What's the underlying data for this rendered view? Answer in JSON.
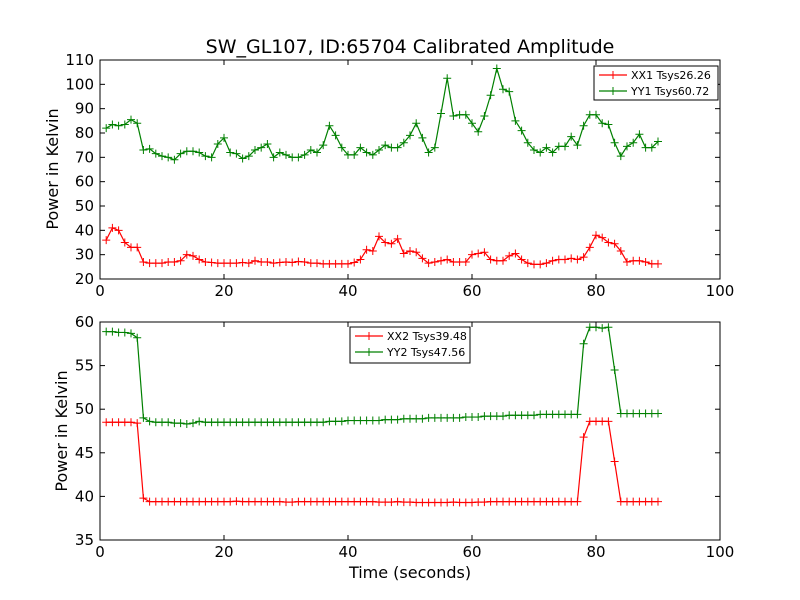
{
  "figure": {
    "title": "SW_GL107, ID:65704 Calibrated Amplitude",
    "xlabel": "Time (seconds)"
  },
  "colors": {
    "red": "#ff0000",
    "green": "#008000",
    "axes": "#000000"
  },
  "chart_data": [
    {
      "type": "line",
      "title": "SW_GL107, ID:65704 Calibrated Amplitude",
      "xlabel": "",
      "ylabel": "Power in Kelvin",
      "xlim": [
        0,
        100
      ],
      "ylim": [
        20,
        110
      ],
      "xticks": [
        0,
        20,
        40,
        60,
        80,
        100
      ],
      "yticks": [
        20,
        30,
        40,
        50,
        60,
        70,
        80,
        90,
        100,
        110
      ],
      "grid": false,
      "legend": "top-right",
      "marker": "+",
      "x": [
        1,
        2,
        3,
        4,
        5,
        6,
        7,
        8,
        9,
        10,
        11,
        12,
        13,
        14,
        15,
        16,
        17,
        18,
        19,
        20,
        21,
        22,
        23,
        24,
        25,
        26,
        27,
        28,
        29,
        30,
        31,
        32,
        33,
        34,
        35,
        36,
        37,
        38,
        39,
        40,
        41,
        42,
        43,
        44,
        45,
        46,
        47,
        48,
        49,
        50,
        51,
        52,
        53,
        54,
        55,
        56,
        57,
        58,
        59,
        60,
        61,
        62,
        63,
        64,
        65,
        66,
        67,
        68,
        69,
        70,
        71,
        72,
        73,
        74,
        75,
        76,
        77,
        78,
        79,
        80,
        81,
        82,
        83,
        84,
        85,
        86,
        87,
        88,
        89,
        90
      ],
      "series": [
        {
          "name": "XX1 Tsys26.26",
          "color": "#ff0000",
          "values": [
            36,
            41,
            40,
            35,
            33,
            33,
            27,
            26.5,
            26.5,
            26.5,
            27,
            27,
            27.5,
            30,
            29.5,
            28,
            27,
            26.8,
            26.5,
            26.5,
            26.5,
            26.5,
            26.8,
            26.5,
            27.5,
            27,
            27,
            26.5,
            26.8,
            27,
            26.8,
            27.2,
            27,
            26.5,
            26.5,
            26.2,
            26.2,
            26.2,
            26.2,
            26.2,
            26.8,
            28,
            32,
            31.5,
            37.5,
            35,
            34.5,
            36.5,
            30.5,
            31.5,
            31,
            28.5,
            26.5,
            27,
            27.5,
            28,
            27,
            27,
            27,
            30,
            30.5,
            31,
            28,
            27.5,
            27.5,
            29.5,
            30.5,
            28,
            26.5,
            26,
            26,
            26.5,
            27.5,
            28,
            28,
            28.5,
            28,
            29,
            33,
            38,
            37,
            35,
            34.5,
            31.5,
            27,
            27.5,
            27.5,
            27,
            26.2,
            26.2
          ]
        },
        {
          "name": "YY1 Tsys60.72",
          "color": "#008000",
          "values": [
            82,
            83.5,
            83,
            83.5,
            85.5,
            84,
            73,
            73.5,
            71.5,
            70.5,
            70,
            69,
            71.5,
            72.5,
            72.5,
            72,
            70.5,
            70,
            75.5,
            78,
            72,
            71.5,
            69.5,
            70.5,
            73,
            74,
            75.5,
            70,
            72,
            71,
            70,
            70,
            71,
            73,
            72,
            75,
            83,
            79,
            74,
            71,
            71,
            74,
            72,
            71,
            73,
            75,
            74,
            74,
            76,
            79,
            84,
            78,
            72,
            74,
            88,
            102.5,
            87,
            87.5,
            87.5,
            84,
            80.5,
            87,
            95.5,
            106.5,
            98,
            97,
            85,
            81,
            76,
            73,
            72,
            74,
            72,
            74.5,
            74.5,
            78.5,
            75,
            83,
            87.5,
            87.5,
            84,
            83.5,
            76,
            70.5,
            74.5,
            76,
            79.5,
            74,
            74,
            76.5
          ]
        }
      ]
    },
    {
      "type": "line",
      "title": "",
      "xlabel": "Time (seconds)",
      "ylabel": "Power in Kelvin",
      "xlim": [
        0,
        100
      ],
      "ylim": [
        35,
        60
      ],
      "xticks": [
        0,
        20,
        40,
        60,
        80,
        100
      ],
      "yticks": [
        35,
        40,
        45,
        50,
        55,
        60
      ],
      "grid": false,
      "legend": "top-center",
      "marker": "+",
      "x": [
        1,
        2,
        3,
        4,
        5,
        6,
        7,
        8,
        9,
        10,
        11,
        12,
        13,
        14,
        15,
        16,
        17,
        18,
        19,
        20,
        21,
        22,
        23,
        24,
        25,
        26,
        27,
        28,
        29,
        30,
        31,
        32,
        33,
        34,
        35,
        36,
        37,
        38,
        39,
        40,
        41,
        42,
        43,
        44,
        45,
        46,
        47,
        48,
        49,
        50,
        51,
        52,
        53,
        54,
        55,
        56,
        57,
        58,
        59,
        60,
        61,
        62,
        63,
        64,
        65,
        66,
        67,
        68,
        69,
        70,
        71,
        72,
        73,
        74,
        75,
        76,
        77,
        78,
        79,
        80,
        81,
        82,
        83,
        84,
        85,
        86,
        87,
        88,
        89,
        90
      ],
      "series": [
        {
          "name": "XX2 Tsys39.48",
          "color": "#ff0000",
          "values": [
            48.5,
            48.5,
            48.5,
            48.5,
            48.5,
            48.4,
            39.8,
            39.4,
            39.4,
            39.4,
            39.4,
            39.4,
            39.4,
            39.4,
            39.4,
            39.4,
            39.4,
            39.4,
            39.4,
            39.4,
            39.4,
            39.45,
            39.4,
            39.4,
            39.4,
            39.4,
            39.4,
            39.4,
            39.4,
            39.35,
            39.35,
            39.4,
            39.4,
            39.4,
            39.4,
            39.4,
            39.4,
            39.4,
            39.4,
            39.4,
            39.4,
            39.4,
            39.4,
            39.4,
            39.35,
            39.35,
            39.35,
            39.4,
            39.35,
            39.35,
            39.3,
            39.3,
            39.3,
            39.3,
            39.3,
            39.3,
            39.35,
            39.3,
            39.3,
            39.3,
            39.35,
            39.35,
            39.4,
            39.4,
            39.4,
            39.4,
            39.4,
            39.4,
            39.4,
            39.4,
            39.4,
            39.4,
            39.4,
            39.4,
            39.4,
            39.4,
            39.4,
            46.8,
            48.6,
            48.6,
            48.6,
            48.6,
            44,
            39.4,
            39.4,
            39.4,
            39.4,
            39.4,
            39.4,
            39.4
          ]
        },
        {
          "name": "YY2 Tsys47.56",
          "color": "#008000",
          "values": [
            58.9,
            58.9,
            58.8,
            58.8,
            58.7,
            58.2,
            49,
            48.6,
            48.5,
            48.5,
            48.5,
            48.4,
            48.4,
            48.3,
            48.4,
            48.6,
            48.5,
            48.5,
            48.5,
            48.5,
            48.5,
            48.5,
            48.5,
            48.5,
            48.5,
            48.5,
            48.5,
            48.5,
            48.5,
            48.5,
            48.5,
            48.5,
            48.5,
            48.5,
            48.5,
            48.5,
            48.6,
            48.6,
            48.6,
            48.7,
            48.7,
            48.7,
            48.7,
            48.7,
            48.7,
            48.8,
            48.8,
            48.8,
            48.9,
            48.9,
            48.9,
            48.9,
            49,
            49,
            49,
            49,
            49,
            49,
            49.1,
            49.1,
            49.1,
            49.2,
            49.2,
            49.2,
            49.2,
            49.3,
            49.3,
            49.3,
            49.3,
            49.3,
            49.4,
            49.4,
            49.4,
            49.4,
            49.4,
            49.4,
            49.4,
            57.5,
            59.4,
            59.4,
            59.3,
            59.4,
            54.5,
            49.5,
            49.5,
            49.5,
            49.5,
            49.5,
            49.5,
            49.5
          ]
        }
      ]
    }
  ]
}
